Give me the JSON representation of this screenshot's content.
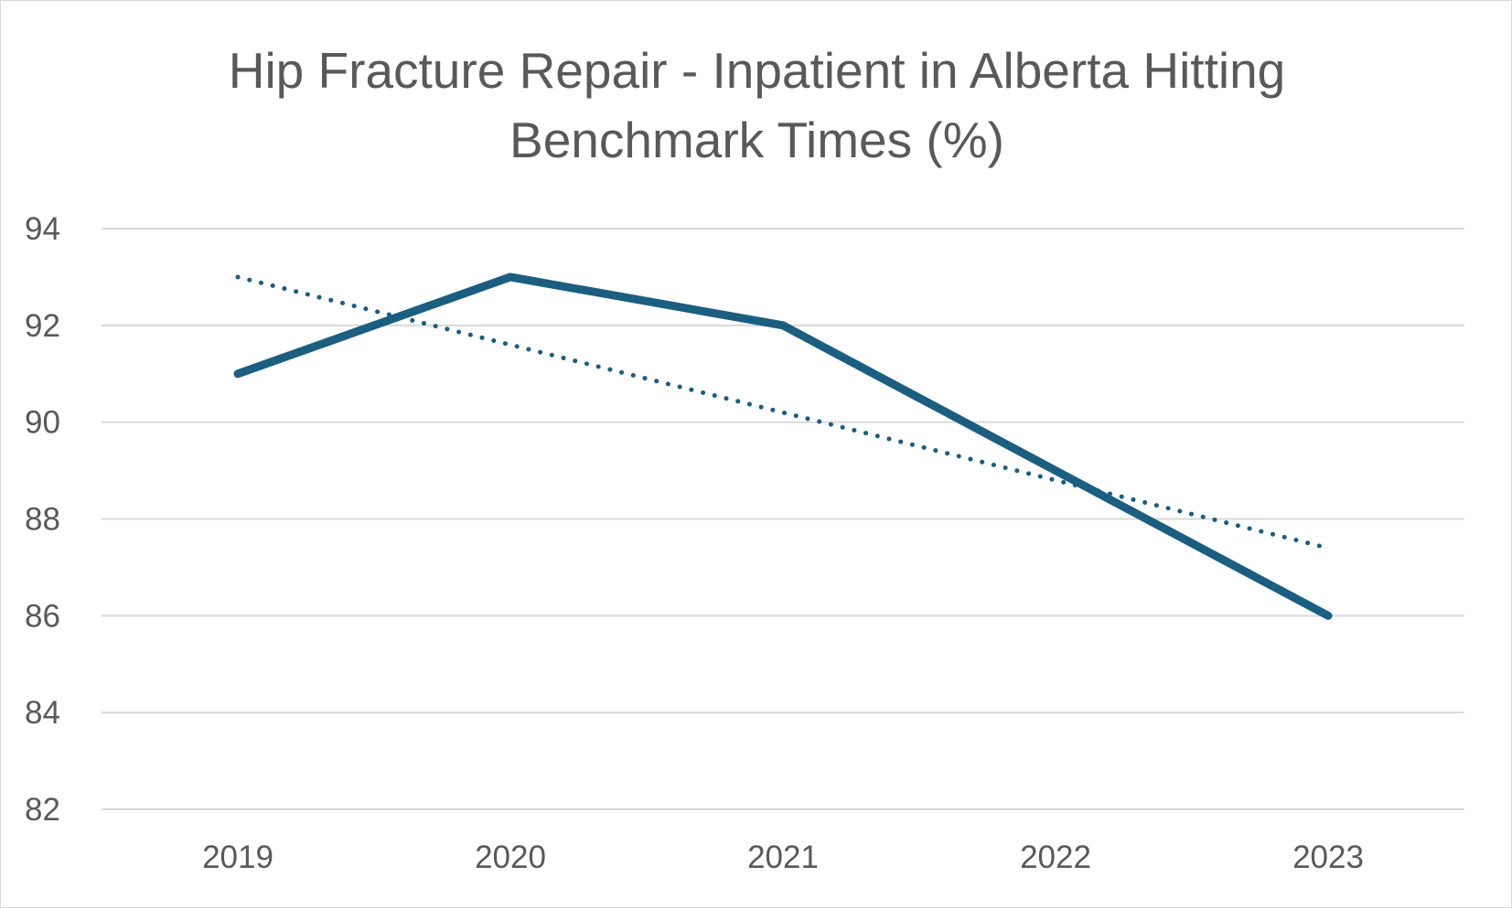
{
  "chart_data": {
    "type": "line",
    "title_lines": [
      "Hip Fracture Repair - Inpatient in Alberta Hitting",
      "Benchmark Times (%)"
    ],
    "categories": [
      "2019",
      "2020",
      "2021",
      "2022",
      "2023"
    ],
    "series": [
      {
        "values": [
          91,
          93,
          92,
          89,
          86
        ],
        "color": "#1b5e80",
        "style": "solid"
      }
    ],
    "trendline": {
      "type": "linear",
      "values": [
        93.0,
        91.6,
        90.2,
        88.8,
        87.4
      ],
      "color": "#1b5e80",
      "style": "dotted"
    },
    "ylim": [
      82,
      94
    ],
    "yticks": [
      82,
      84,
      86,
      88,
      90,
      92,
      94
    ],
    "grid": true,
    "legend": "none",
    "gridline_color": "#d9d9d9",
    "text_color": "#595959"
  }
}
